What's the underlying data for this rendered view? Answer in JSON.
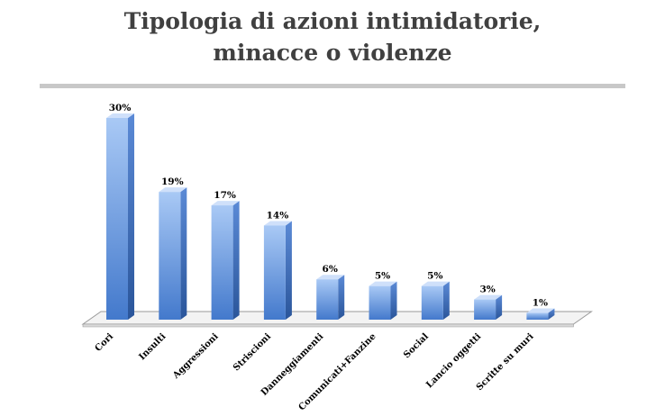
{
  "title": {
    "line1": "Tipologia di azioni intimidatorie,",
    "line2": "minacce o violenze"
  },
  "chart_data": {
    "type": "bar",
    "categories": [
      "Cori",
      "Insulti",
      "Aggressioni",
      "Striscioni",
      "Danneggiamenti",
      "Comunicati+Fanzine",
      "Social",
      "Lancio oggetti",
      "Scritte su muri"
    ],
    "values": [
      30,
      19,
      17,
      14,
      6,
      5,
      5,
      3,
      1
    ],
    "value_labels": [
      "30%",
      "19%",
      "17%",
      "14%",
      "6%",
      "5%",
      "5%",
      "3%",
      "1%"
    ],
    "unit": "%",
    "ylim": [
      0,
      30
    ],
    "grid": false,
    "legend": "none",
    "bar_style": "3d",
    "colors": {
      "bar_front_top": "#a9c9f5",
      "bar_front_bottom": "#4379cc",
      "bar_side": "#2f5ea6",
      "bar_top": "#cfe0fa",
      "floor": "#f3f3f3",
      "floor_edge": "#9a9a9a"
    }
  }
}
